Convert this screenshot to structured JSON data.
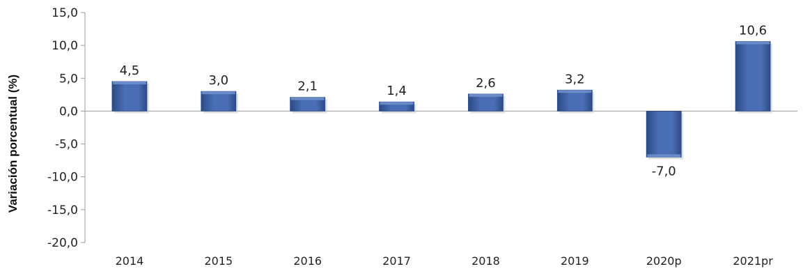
{
  "chart_data": {
    "type": "bar",
    "title": "",
    "xlabel": "",
    "ylabel": "Variación porcentual (%)",
    "categories": [
      "2014",
      "2015",
      "2016",
      "2017",
      "2018",
      "2019",
      "2020p",
      "2021pr"
    ],
    "values": [
      4.5,
      3.0,
      2.1,
      1.4,
      2.6,
      3.2,
      -7.0,
      10.6
    ],
    "value_labels": [
      "4,5",
      "3,0",
      "2,1",
      "1,4",
      "2,6",
      "3,2",
      "-7,0",
      "10,6"
    ],
    "ylim": [
      -20,
      15
    ],
    "yticks": [
      15,
      10,
      5,
      0,
      -5,
      -10,
      -15,
      -20
    ],
    "ytick_labels": [
      "15,0",
      "10,0",
      "5,0",
      "0,0",
      "-5,0",
      "-10,0",
      "-15,0",
      "-20,0"
    ],
    "grid": false,
    "legend": "none",
    "colors": {
      "bar_fill": "#4a6eb4",
      "bar_top": "#6f8fcc",
      "bar_edge": "#2c4a85",
      "axis": "#9a9a9a"
    }
  }
}
